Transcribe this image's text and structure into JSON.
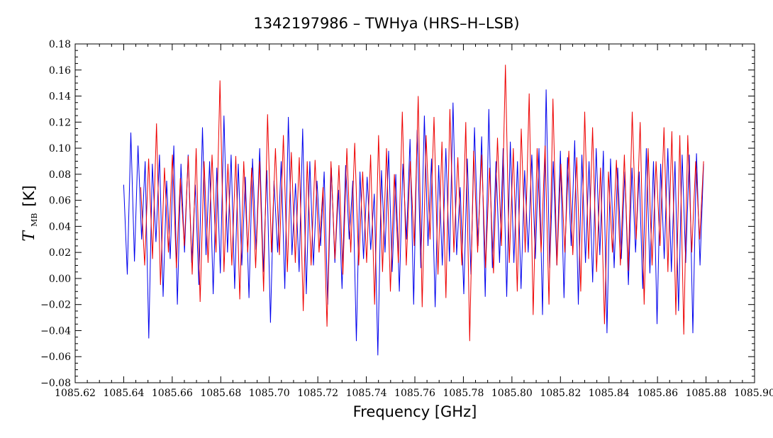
{
  "chart_data": {
    "type": "line",
    "title": "1342197986 – TWHya (HRS–H–LSB)",
    "xlabel": "Frequency [GHz]",
    "ylabel": {
      "symbol": "T",
      "subscript": "MB",
      "unit": "[K]"
    },
    "xlim": [
      1085.62,
      1085.9
    ],
    "ylim": [
      -0.08,
      0.18
    ],
    "x_ticks": [
      "1085.62",
      "1085.64",
      "1085.66",
      "1085.68",
      "1085.70",
      "1085.72",
      "1085.74",
      "1085.76",
      "1085.78",
      "1085.80",
      "1085.82",
      "1085.84",
      "1085.86",
      "1085.88",
      "1085.90"
    ],
    "y_ticks": [
      "0.18",
      "0.16",
      "0.14",
      "0.12",
      "0.10",
      "0.08",
      "0.06",
      "0.04",
      "0.02",
      "0.00",
      "−0.02",
      "−0.04",
      "−0.06",
      "−0.08"
    ],
    "grid": false,
    "x_range_data": [
      1085.64,
      1085.879
    ],
    "series": [
      {
        "color": "#0000ee",
        "x_start": 1085.64,
        "x_end": 1085.879,
        "values": [
          0.072,
          0.003,
          0.112,
          0.013,
          0.102,
          0.03,
          0.09,
          -0.046,
          0.088,
          0.028,
          0.095,
          -0.014,
          0.075,
          0.015,
          0.102,
          -0.02,
          0.088,
          0.02,
          0.095,
          0.012,
          0.072,
          -0.005,
          0.116,
          0.018,
          0.09,
          -0.012,
          0.085,
          0.004,
          0.125,
          0.02,
          0.095,
          -0.008,
          0.088,
          0.01,
          0.078,
          -0.015,
          0.092,
          0.022,
          0.1,
          0.005,
          0.083,
          -0.034,
          0.075,
          0.02,
          0.09,
          -0.008,
          0.124,
          0.018,
          0.073,
          0.005,
          0.115,
          -0.012,
          0.09,
          0.01,
          0.075,
          0.025,
          0.082,
          -0.02,
          0.085,
          0.012,
          0.068,
          -0.008,
          0.087,
          0.03,
          0.075,
          -0.048,
          0.082,
          0.015,
          0.078,
          0.022,
          0.065,
          -0.059,
          0.083,
          0.02,
          0.098,
          0.005,
          0.08,
          -0.01,
          0.088,
          0.03,
          0.107,
          -0.02,
          0.114,
          0.008,
          0.125,
          0.025,
          0.092,
          -0.022,
          0.087,
          0.01,
          0.1,
          0.013,
          0.135,
          0.018,
          0.07,
          -0.012,
          0.092,
          0.003,
          0.116,
          0.025,
          0.109,
          -0.014,
          0.13,
          0.008,
          0.09,
          0.012,
          0.1,
          -0.014,
          0.105,
          0.012,
          0.09,
          -0.008,
          0.083,
          0.02,
          0.095,
          0.015,
          0.1,
          -0.028,
          0.145,
          0.008,
          0.09,
          0.01,
          0.098,
          -0.015,
          0.093,
          0.025,
          0.106,
          -0.02,
          0.095,
          0.012,
          0.09,
          -0.003,
          0.1,
          0.018,
          0.098,
          -0.042,
          0.092,
          0.008,
          0.085,
          0.015,
          0.082,
          -0.005,
          0.085,
          0.02,
          0.082,
          -0.008,
          0.1,
          0.004,
          0.09,
          -0.035,
          0.088,
          0.015,
          0.1,
          0.005,
          0.09,
          -0.025,
          0.095,
          0.012,
          0.095,
          -0.042,
          0.096,
          0.01,
          0.088
        ]
      },
      {
        "color": "#ee0000",
        "x_start": 1085.647,
        "x_end": 1085.879,
        "values": [
          0.07,
          0.01,
          0.092,
          0.015,
          0.119,
          -0.005,
          0.085,
          0.02,
          0.095,
          0.008,
          0.077,
          0.025,
          0.094,
          0.003,
          0.1,
          -0.018,
          0.09,
          0.012,
          0.095,
          0.02,
          0.152,
          0.005,
          0.088,
          0.01,
          0.094,
          -0.016,
          0.09,
          0.02,
          0.085,
          0.008,
          0.09,
          -0.01,
          0.126,
          0.02,
          0.1,
          0.018,
          0.11,
          0.005,
          0.097,
          0.012,
          0.093,
          -0.025,
          0.09,
          0.01,
          0.091,
          0.02,
          0.07,
          -0.037,
          0.09,
          0.015,
          0.087,
          0.003,
          0.1,
          0.02,
          0.104,
          0.01,
          0.082,
          0.012,
          0.095,
          -0.02,
          0.11,
          0.005,
          0.1,
          -0.01,
          0.08,
          0.012,
          0.128,
          0.01,
          0.09,
          0.025,
          0.14,
          -0.022,
          0.11,
          0.03,
          0.124,
          0.003,
          0.105,
          -0.015,
          0.13,
          0.02,
          0.093,
          0.01,
          0.12,
          -0.048,
          0.098,
          0.02,
          0.095,
          0.008,
          0.085,
          0.004,
          0.108,
          0.025,
          0.164,
          0.012,
          0.1,
          -0.01,
          0.115,
          0.02,
          0.142,
          -0.028,
          0.1,
          0.02,
          0.102,
          -0.02,
          0.138,
          0.01,
          0.088,
          0.02,
          0.098,
          0.018,
          0.093,
          -0.01,
          0.128,
          0.015,
          0.116,
          0.005,
          0.085,
          -0.035,
          0.082,
          0.02,
          0.091,
          0.01,
          0.095,
          0.006,
          0.128,
          0.03,
          0.12,
          -0.02,
          0.1,
          0.01,
          0.09,
          0.025,
          0.116,
          0.005,
          0.113,
          -0.028,
          0.11,
          -0.043,
          0.11,
          0.02,
          0.09,
          0.03,
          0.09
        ]
      }
    ]
  }
}
